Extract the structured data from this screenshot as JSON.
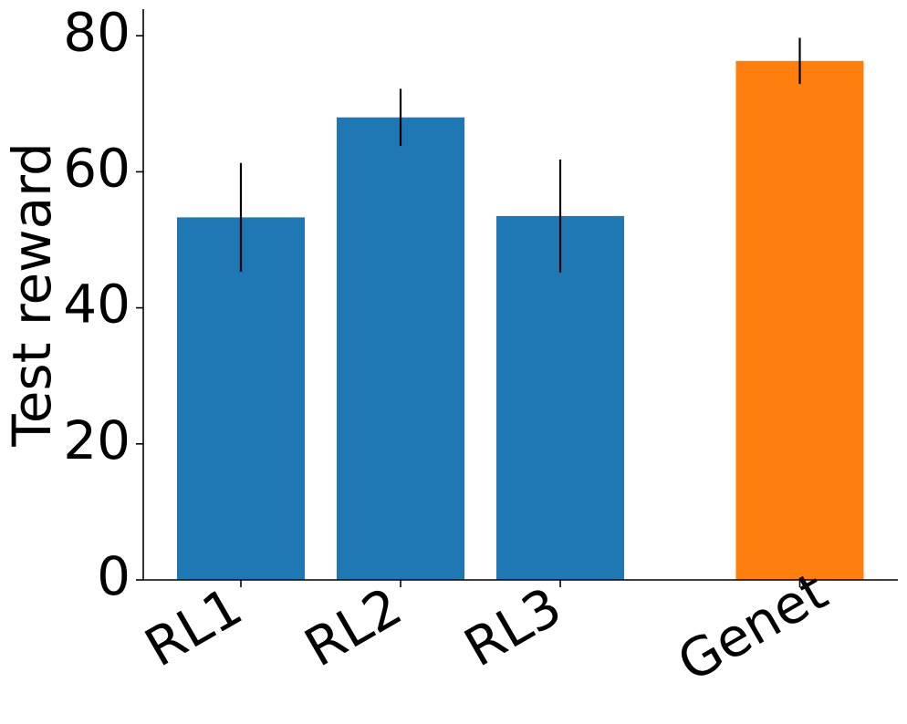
{
  "chart_data": {
    "type": "bar",
    "categories": [
      "RL1",
      "RL2",
      "RL3",
      "Genet"
    ],
    "values": [
      53.3,
      68.0,
      53.5,
      76.3
    ],
    "errors": [
      8.0,
      4.2,
      8.3,
      3.4
    ],
    "colors": [
      "#1f77b4",
      "#1f77b4",
      "#1f77b4",
      "#ff7f0e"
    ],
    "positions": [
      0,
      1,
      2,
      3.5
    ],
    "xlabel": "",
    "ylabel": "Test reward",
    "ylim": [
      0,
      84
    ],
    "yticks": [
      0,
      20,
      40,
      60,
      80
    ],
    "ytick_labels": [
      "0",
      "20",
      "40",
      "60",
      "80"
    ],
    "grid": false,
    "title": ""
  }
}
